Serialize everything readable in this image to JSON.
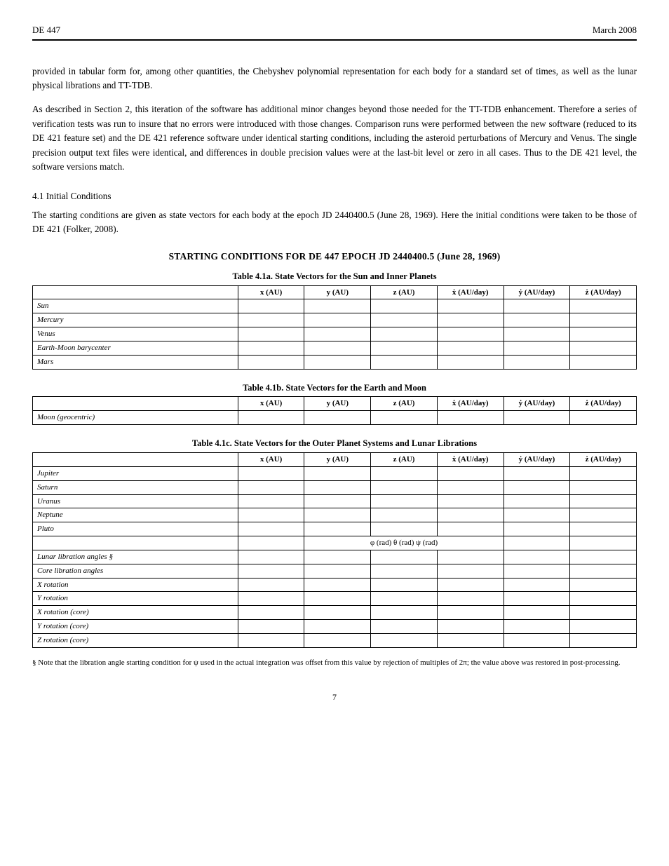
{
  "header": {
    "left": "DE 447",
    "right": "March 2008"
  },
  "paragraphs": {
    "p1": "provided in tabular form for, among other quantities, the Chebyshev polynomial representation for each body for a standard set of times, as well as the lunar physical librations and TT-TDB.",
    "p2": "As described in Section 2, this iteration of the software has additional minor changes beyond those needed for the TT-TDB enhancement. Therefore a series of verification tests was run to insure that no errors were introduced with those changes. Comparison runs were performed between the new software (reduced to its DE 421 feature set) and the DE 421 reference software under identical starting conditions, including the asteroid perturbations of Mercury and Venus. The single precision output text files were identical, and differences in double precision values were at the last-bit level or zero in all cases. Thus to the DE 421 level, the software versions match.",
    "p3": "The starting conditions are given as state vectors for each body at the epoch JD 2440400.5 (June 28, 1969). Here the initial conditions were taken to be those of DE 421 (Folker, 2008)."
  },
  "subhead": "4.1  Initial Conditions",
  "section_title": "STARTING CONDITIONS FOR DE 447 EPOCH JD 2440400.5 (June 28, 1969)",
  "tables": {
    "t1": {
      "title": "Table 4.1a. State Vectors for the Sun and Inner Planets",
      "columns": [
        "",
        "x (AU)",
        "y (AU)",
        "z (AU)",
        "ẋ (AU/day)",
        "ẏ (AU/day)",
        "ż (AU/day)"
      ],
      "rows": [
        [
          "Sun",
          "",
          "",
          "",
          "",
          "",
          ""
        ],
        [
          "Mercury",
          "",
          "",
          "",
          "",
          "",
          ""
        ],
        [
          "Venus",
          "",
          "",
          "",
          "",
          "",
          ""
        ],
        [
          "Earth-Moon barycenter",
          "",
          "",
          "",
          "",
          "",
          ""
        ],
        [
          "Mars",
          "",
          "",
          "",
          "",
          "",
          ""
        ]
      ],
      "col_widths": [
        "34%",
        "11%",
        "11%",
        "11%",
        "11%",
        "11%",
        "11%"
      ]
    },
    "t2": {
      "title": "Table 4.1b. State Vectors for the Earth and Moon",
      "columns": [
        "",
        "x (AU)",
        "y (AU)",
        "z (AU)",
        "ẋ (AU/day)",
        "ẏ (AU/day)",
        "ż (AU/day)"
      ],
      "rows": [
        [
          "Moon (geocentric)",
          "",
          "",
          "",
          "",
          "",
          ""
        ]
      ],
      "col_widths": [
        "34%",
        "11%",
        "11%",
        "11%",
        "11%",
        "11%",
        "11%"
      ]
    },
    "t3": {
      "title": "Table 4.1c. State Vectors for the Outer Planet Systems and Lunar Librations",
      "columns": [
        "",
        "x (AU)",
        "y (AU)",
        "z (AU)",
        "ẋ (AU/day)",
        "ẏ (AU/day)",
        "ż (AU/day)"
      ],
      "rows": [
        {
          "cells": [
            "Jupiter",
            "",
            "",
            "",
            "",
            "",
            ""
          ]
        },
        {
          "cells": [
            "Saturn",
            "",
            "",
            "",
            "",
            "",
            ""
          ]
        },
        {
          "cells": [
            "Uranus",
            "",
            "",
            "",
            "",
            "",
            ""
          ]
        },
        {
          "cells": [
            "Neptune",
            "",
            "",
            "",
            "",
            "",
            ""
          ]
        },
        {
          "cells": [
            "Pluto",
            "",
            "",
            "",
            "",
            "",
            ""
          ]
        },
        {
          "merged": true,
          "label": "",
          "span_cell": "φ   (rad)                θ   (rad)                ψ   (rad)",
          "c5": "",
          "c6": ""
        },
        {
          "cells": [
            "Lunar libration angles §",
            "",
            "",
            "",
            "",
            "",
            ""
          ]
        },
        {
          "cells": [
            "Core libration angles",
            "",
            "",
            "",
            "",
            "",
            ""
          ]
        },
        {
          "cells": [
            "X rotation",
            "",
            "",
            "",
            "",
            "",
            ""
          ]
        },
        {
          "cells": [
            "Y rotation",
            "",
            "",
            "",
            "",
            "",
            ""
          ]
        },
        {
          "cells": [
            "X rotation (core)",
            "",
            "",
            "",
            "",
            "",
            ""
          ]
        },
        {
          "cells": [
            "Y rotation (core)",
            "",
            "",
            "",
            "",
            "",
            ""
          ]
        },
        {
          "cells": [
            "Z rotation (core)",
            "",
            "",
            "",
            "",
            "",
            ""
          ]
        }
      ],
      "col_widths": [
        "34%",
        "11%",
        "11%",
        "11%",
        "11%",
        "11%",
        "11%"
      ]
    }
  },
  "footnote": "§ Note that the libration angle starting condition for ψ used in the actual integration was offset from this value by rejection of multiples of 2π; the value above was restored in post-processing.",
  "page_no": "7"
}
